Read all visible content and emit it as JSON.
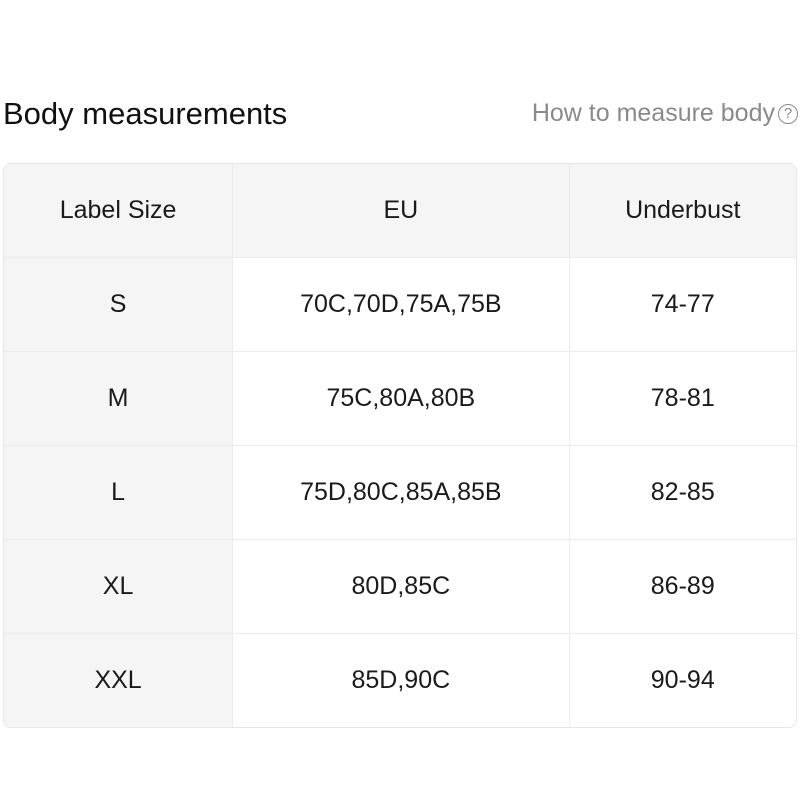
{
  "title": "Body measurements",
  "how_to": {
    "label": "How to measure body",
    "icon": "question-circle-icon"
  },
  "table": {
    "headers": [
      "Label Size",
      "EU",
      "Underbust"
    ],
    "rows": [
      [
        "S",
        "70C,70D,75A,75B",
        "74-77"
      ],
      [
        "M",
        "75C,80A,80B",
        "78-81"
      ],
      [
        "L",
        "75D,80C,85A,85B",
        "82-85"
      ],
      [
        "XL",
        "80D,85C",
        "86-89"
      ],
      [
        "XXL",
        "85D,90C",
        "90-94"
      ]
    ]
  }
}
